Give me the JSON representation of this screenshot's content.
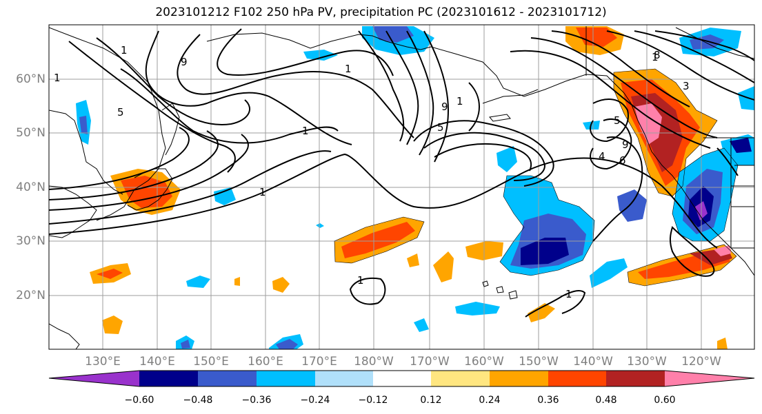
{
  "title": "2023101212 F102 250 hPa PV, precipitation PC (2023101612 - 2023101712)",
  "lat_labels": [
    "60°N",
    "50°N",
    "40°N",
    "30°N",
    "20°N"
  ],
  "lon_labels": [
    "130°E",
    "140°E",
    "150°E",
    "160°E",
    "170°E",
    "180°W",
    "170°W",
    "160°W",
    "150°W",
    "140°W",
    "130°W",
    "120°W"
  ],
  "contour_labels": [
    "1",
    "5",
    "9",
    "1",
    "1",
    "1",
    "1",
    "5",
    "9",
    "1",
    "5",
    "9",
    "1",
    "3",
    "4",
    "6",
    "8",
    "1",
    "1"
  ],
  "colorbar": {
    "tick_labels": [
      "−0.60",
      "−0.48",
      "−0.36",
      "−0.24",
      "−0.12",
      "0.12",
      "0.24",
      "0.36",
      "0.48",
      "0.60"
    ],
    "colors": [
      "#9932cc",
      "#00008b",
      "#3a5bcc",
      "#00bfff",
      "#b0e0fa",
      "#ffffff",
      "#ffe680",
      "#ffa500",
      "#ff4500",
      "#b22222",
      "#ff80aa"
    ]
  }
}
